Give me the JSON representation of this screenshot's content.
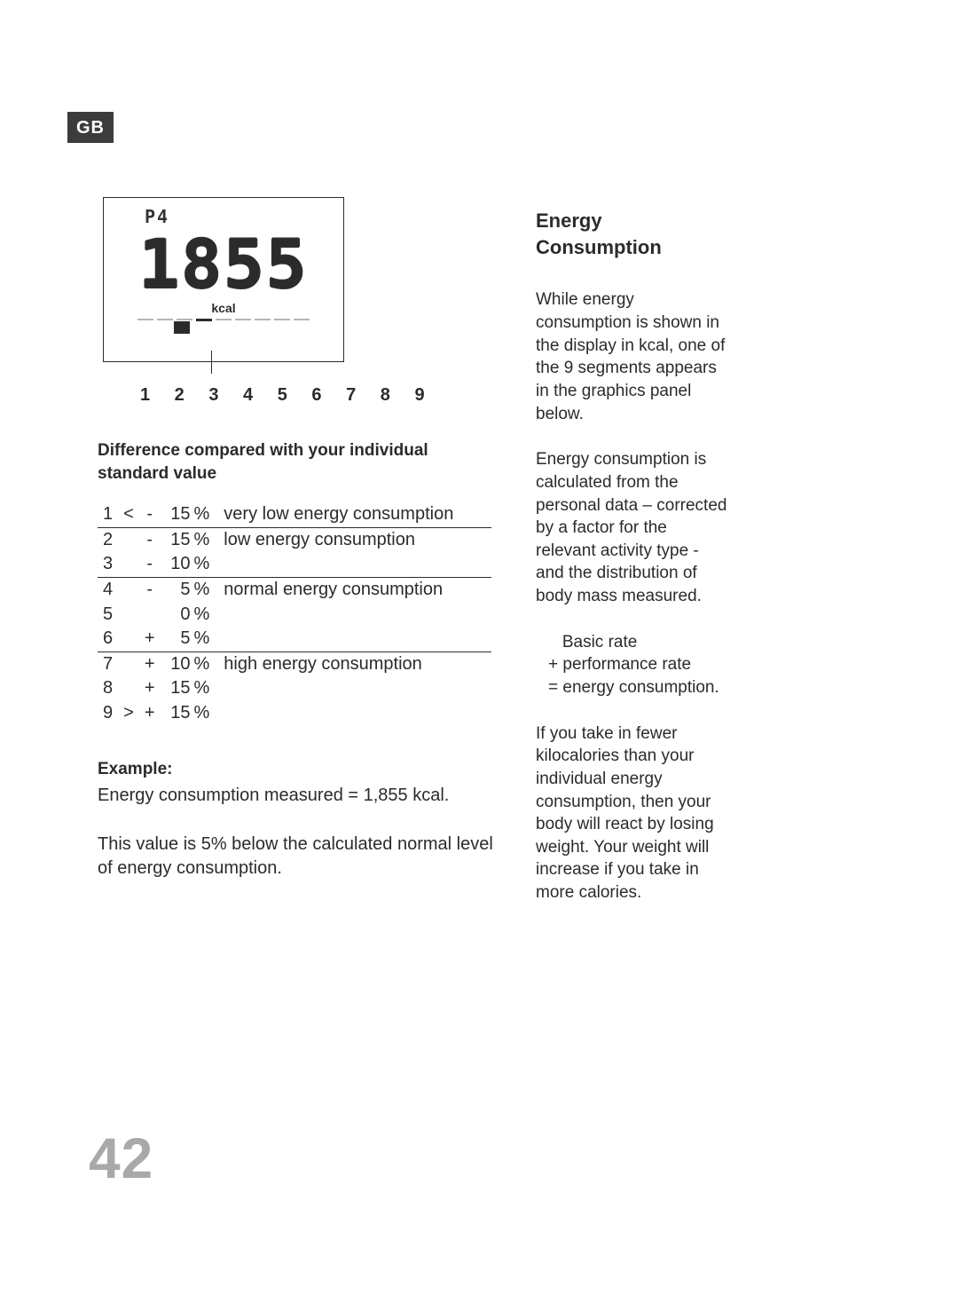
{
  "tag": "GB",
  "page_number": "42",
  "display": {
    "mode": "P4",
    "value": "1855",
    "unit": "kcal",
    "segment_labels": "1 2 3 4 5 6 7 8 9",
    "active_segment_index": 4
  },
  "table": {
    "header": "Difference compared with your individual standard value",
    "rows": [
      {
        "idx": "1",
        "sign": "<",
        "symb": "-",
        "num": "15",
        "pct": "%",
        "label": "very low energy consumption",
        "topline": false
      },
      {
        "idx": "2",
        "sign": "",
        "symb": "-",
        "num": "15",
        "pct": "%",
        "label": "low energy consumption",
        "topline": true
      },
      {
        "idx": "3",
        "sign": "",
        "symb": "-",
        "num": "10",
        "pct": "%",
        "label": "",
        "topline": false
      },
      {
        "idx": "4",
        "sign": "",
        "symb": "-",
        "num": "5",
        "pct": "%",
        "label": "normal energy consumption",
        "topline": true
      },
      {
        "idx": "5",
        "sign": "",
        "symb": "",
        "num": "0",
        "pct": "%",
        "label": "",
        "topline": false
      },
      {
        "idx": "6",
        "sign": "",
        "symb": "+",
        "num": "5",
        "pct": "%",
        "label": "",
        "topline": false
      },
      {
        "idx": "7",
        "sign": "",
        "symb": "+",
        "num": "10",
        "pct": "%",
        "label": "high energy consumption",
        "topline": true
      },
      {
        "idx": "8",
        "sign": "",
        "symb": "+",
        "num": "15",
        "pct": "%",
        "label": "",
        "topline": false
      },
      {
        "idx": "9",
        "sign": ">",
        "symb": "+",
        "num": "15",
        "pct": "%",
        "label": "",
        "topline": false
      }
    ]
  },
  "example": {
    "header": "Example:",
    "line1": "Energy consumption measured = 1,855 kcal.",
    "line2": "This value is 5% below the calculated normal level of energy consumption."
  },
  "right": {
    "title": "Energy Consumption",
    "p1": "While energy consumption is shown in the display in kcal, one of the 9 segments appe­ars in the graphics panel below.",
    "p2": "Energy consumption is calcu­lated from the personal data – corrected by a factor for the relevant activity type - and the distribution of body mass measured.",
    "formula": {
      "l1": "Basic rate",
      "l2": "+ performance rate",
      "l3": "= energy consumption."
    },
    "p3": "If you take in fewer kilocalo­ries than your individual energy consumption, then your body will react by losing weight. Your weight will increase if you take in more calories."
  },
  "colors": {
    "text": "#2b2b2b",
    "bg": "#ffffff",
    "pagenum": "#a9a9a9",
    "tag_bg": "#3c3c3c"
  }
}
